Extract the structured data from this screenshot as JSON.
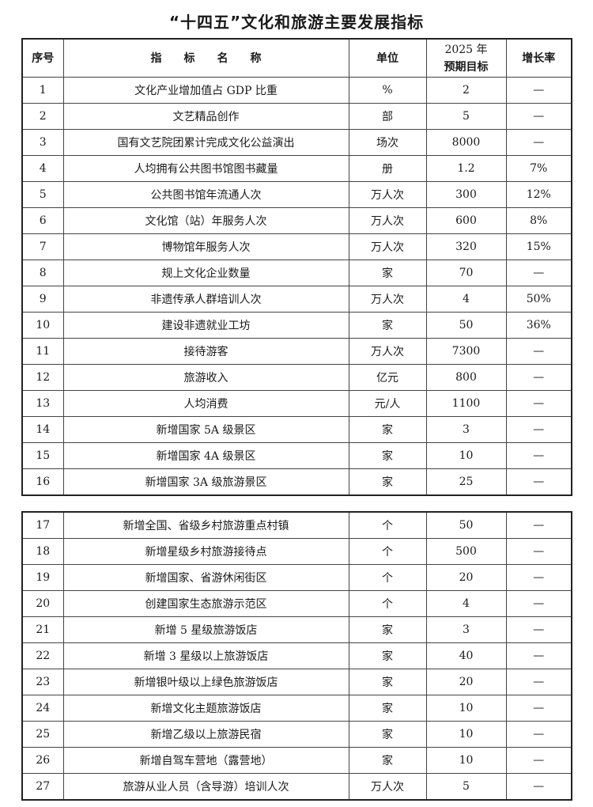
{
  "title": "“十四五”文化和旅游主要发展指标",
  "headers": {
    "no": "序号",
    "name": "指　　标　　名　　称",
    "unit": "单位",
    "target_line1": "2025 年",
    "target_line2": "预期目标",
    "growth": "增长率"
  },
  "rows": [
    [
      "1",
      "文化产业增加值占 GDP 比重",
      "%",
      "2",
      "—"
    ],
    [
      "2",
      "文艺精品创作",
      "部",
      "5",
      "—"
    ],
    [
      "3",
      "国有文艺院团累计完成文化公益演出",
      "场次",
      "8000",
      "—"
    ],
    [
      "4",
      "人均拥有公共图书馆图书藏量",
      "册",
      "1.2",
      "7%"
    ],
    [
      "5",
      "公共图书馆年流通人次",
      "万人次",
      "300",
      "12%"
    ],
    [
      "6",
      "文化馆（站）年服务人次",
      "万人次",
      "600",
      "8%"
    ],
    [
      "7",
      "博物馆年服务人次",
      "万人次",
      "320",
      "15%"
    ],
    [
      "8",
      "规上文化企业数量",
      "家",
      "70",
      "—"
    ],
    [
      "9",
      "非遗传承人群培训人次",
      "万人次",
      "4",
      "50%"
    ],
    [
      "10",
      "建设非遗就业工坊",
      "家",
      "50",
      "36%"
    ],
    [
      "11",
      "接待游客",
      "万人次",
      "7300",
      "—"
    ],
    [
      "12",
      "旅游收入",
      "亿元",
      "800",
      "—"
    ],
    [
      "13",
      "人均消费",
      "元/人",
      "1100",
      "—"
    ],
    [
      "14",
      "新增国家 5A 级景区",
      "家",
      "3",
      "—"
    ],
    [
      "15",
      "新增国家 4A 级景区",
      "家",
      "10",
      "—"
    ],
    [
      "16",
      "新增国家 3A 级旅游景区",
      "家",
      "25",
      "—"
    ],
    [
      "17",
      "新增全国、省级乡村旅游重点村镇",
      "个",
      "50",
      "—"
    ],
    [
      "18",
      "新增星级乡村旅游接待点",
      "个",
      "500",
      "—"
    ],
    [
      "19",
      "新增国家、省游休闲街区",
      "个",
      "20",
      "—"
    ],
    [
      "20",
      "创建国家生态旅游示范区",
      "个",
      "4",
      "—"
    ],
    [
      "21",
      "新增 5 星级旅游饭店",
      "家",
      "3",
      "—"
    ],
    [
      "22",
      "新增 3 星级以上旅游饭店",
      "家",
      "40",
      "—"
    ],
    [
      "23",
      "新增银叶级以上绿色旅游饭店",
      "家",
      "20",
      "—"
    ],
    [
      "24",
      "新增文化主题旅游饭店",
      "家",
      "10",
      "—"
    ],
    [
      "25",
      "新增乙级以上旅游民宿",
      "家",
      "10",
      "—"
    ],
    [
      "26",
      "新增自驾车营地（露营地）",
      "家",
      "10",
      "—"
    ],
    [
      "27",
      "旅游从业人员（含导游）培训人次",
      "万人次",
      "5",
      "—"
    ]
  ]
}
